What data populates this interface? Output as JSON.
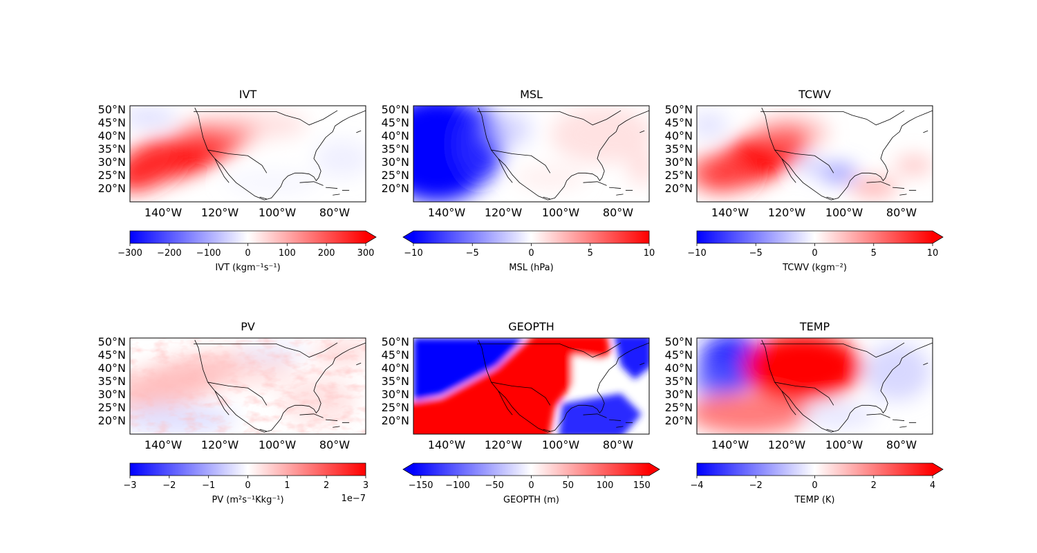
{
  "chart_data": [
    {
      "type": "heatmap",
      "title": "IVT",
      "lat_ticks": [
        "50°N",
        "45°N",
        "40°N",
        "35°N",
        "30°N",
        "25°N",
        "20°N"
      ],
      "lon_ticks": [
        "140°W",
        "120°W",
        "100°W",
        "80°W"
      ],
      "colorbar": {
        "label": "IVT (kgm⁻¹s⁻¹)",
        "range": [
          -300,
          300
        ],
        "ticks": [
          "−300",
          "−200",
          "−100",
          "0",
          "100",
          "200",
          "300"
        ],
        "extend": "max",
        "offset": ""
      },
      "colormap": [
        "#0000ff",
        "#ffffff",
        "#ff0000"
      ]
    },
    {
      "type": "heatmap",
      "title": "MSL",
      "lat_ticks": [
        "50°N",
        "45°N",
        "40°N",
        "35°N",
        "30°N",
        "25°N",
        "20°N"
      ],
      "lon_ticks": [
        "140°W",
        "120°W",
        "100°W",
        "80°W"
      ],
      "colorbar": {
        "label": "MSL (hPa)",
        "range": [
          -10,
          10
        ],
        "ticks": [
          "−10",
          "−5",
          "0",
          "5",
          "10"
        ],
        "extend": "min",
        "offset": ""
      },
      "colormap": [
        "#0000ff",
        "#ffffff",
        "#ff0000"
      ]
    },
    {
      "type": "heatmap",
      "title": "TCWV",
      "lat_ticks": [
        "50°N",
        "45°N",
        "40°N",
        "35°N",
        "30°N",
        "25°N",
        "20°N"
      ],
      "lon_ticks": [
        "140°W",
        "120°W",
        "100°W",
        "80°W"
      ],
      "colorbar": {
        "label": "TCWV (kgm⁻²)",
        "range": [
          -10,
          10
        ],
        "ticks": [
          "−10",
          "−5",
          "0",
          "5",
          "10"
        ],
        "extend": "max",
        "offset": ""
      },
      "colormap": [
        "#0000ff",
        "#ffffff",
        "#ff0000"
      ]
    },
    {
      "type": "heatmap",
      "title": "PV",
      "lat_ticks": [
        "50°N",
        "45°N",
        "40°N",
        "35°N",
        "30°N",
        "25°N",
        "20°N"
      ],
      "lon_ticks": [
        "140°W",
        "120°W",
        "100°W",
        "80°W"
      ],
      "colorbar": {
        "label": "PV (m²s⁻¹Kkg⁻¹)",
        "range": [
          -3,
          3
        ],
        "ticks": [
          "−3",
          "−2",
          "−1",
          "0",
          "1",
          "2",
          "3"
        ],
        "extend": "neither",
        "offset": "1e−7"
      },
      "colormap": [
        "#0000ff",
        "#ffffff",
        "#ff0000"
      ]
    },
    {
      "type": "heatmap",
      "title": "GEOPTH",
      "lat_ticks": [
        "50°N",
        "45°N",
        "40°N",
        "35°N",
        "30°N",
        "25°N",
        "20°N"
      ],
      "lon_ticks": [
        "140°W",
        "120°W",
        "100°W",
        "80°W"
      ],
      "colorbar": {
        "label": "GEOPTH (m)",
        "range": [
          -160,
          160
        ],
        "ticks": [
          "−150",
          "−100",
          "−50",
          "0",
          "50",
          "100",
          "150"
        ],
        "extend": "both",
        "offset": ""
      },
      "colormap": [
        "#0000ff",
        "#ffffff",
        "#ff0000"
      ]
    },
    {
      "type": "heatmap",
      "title": "TEMP",
      "lat_ticks": [
        "50°N",
        "45°N",
        "40°N",
        "35°N",
        "30°N",
        "25°N",
        "20°N"
      ],
      "lon_ticks": [
        "140°W",
        "120°W",
        "100°W",
        "80°W"
      ],
      "colorbar": {
        "label": "TEMP (K)",
        "range": [
          -4,
          4
        ],
        "ticks": [
          "−4",
          "−2",
          "0",
          "2",
          "4"
        ],
        "extend": "max",
        "offset": ""
      },
      "colormap": [
        "#0000ff",
        "#ffffff",
        "#ff0000"
      ]
    }
  ]
}
